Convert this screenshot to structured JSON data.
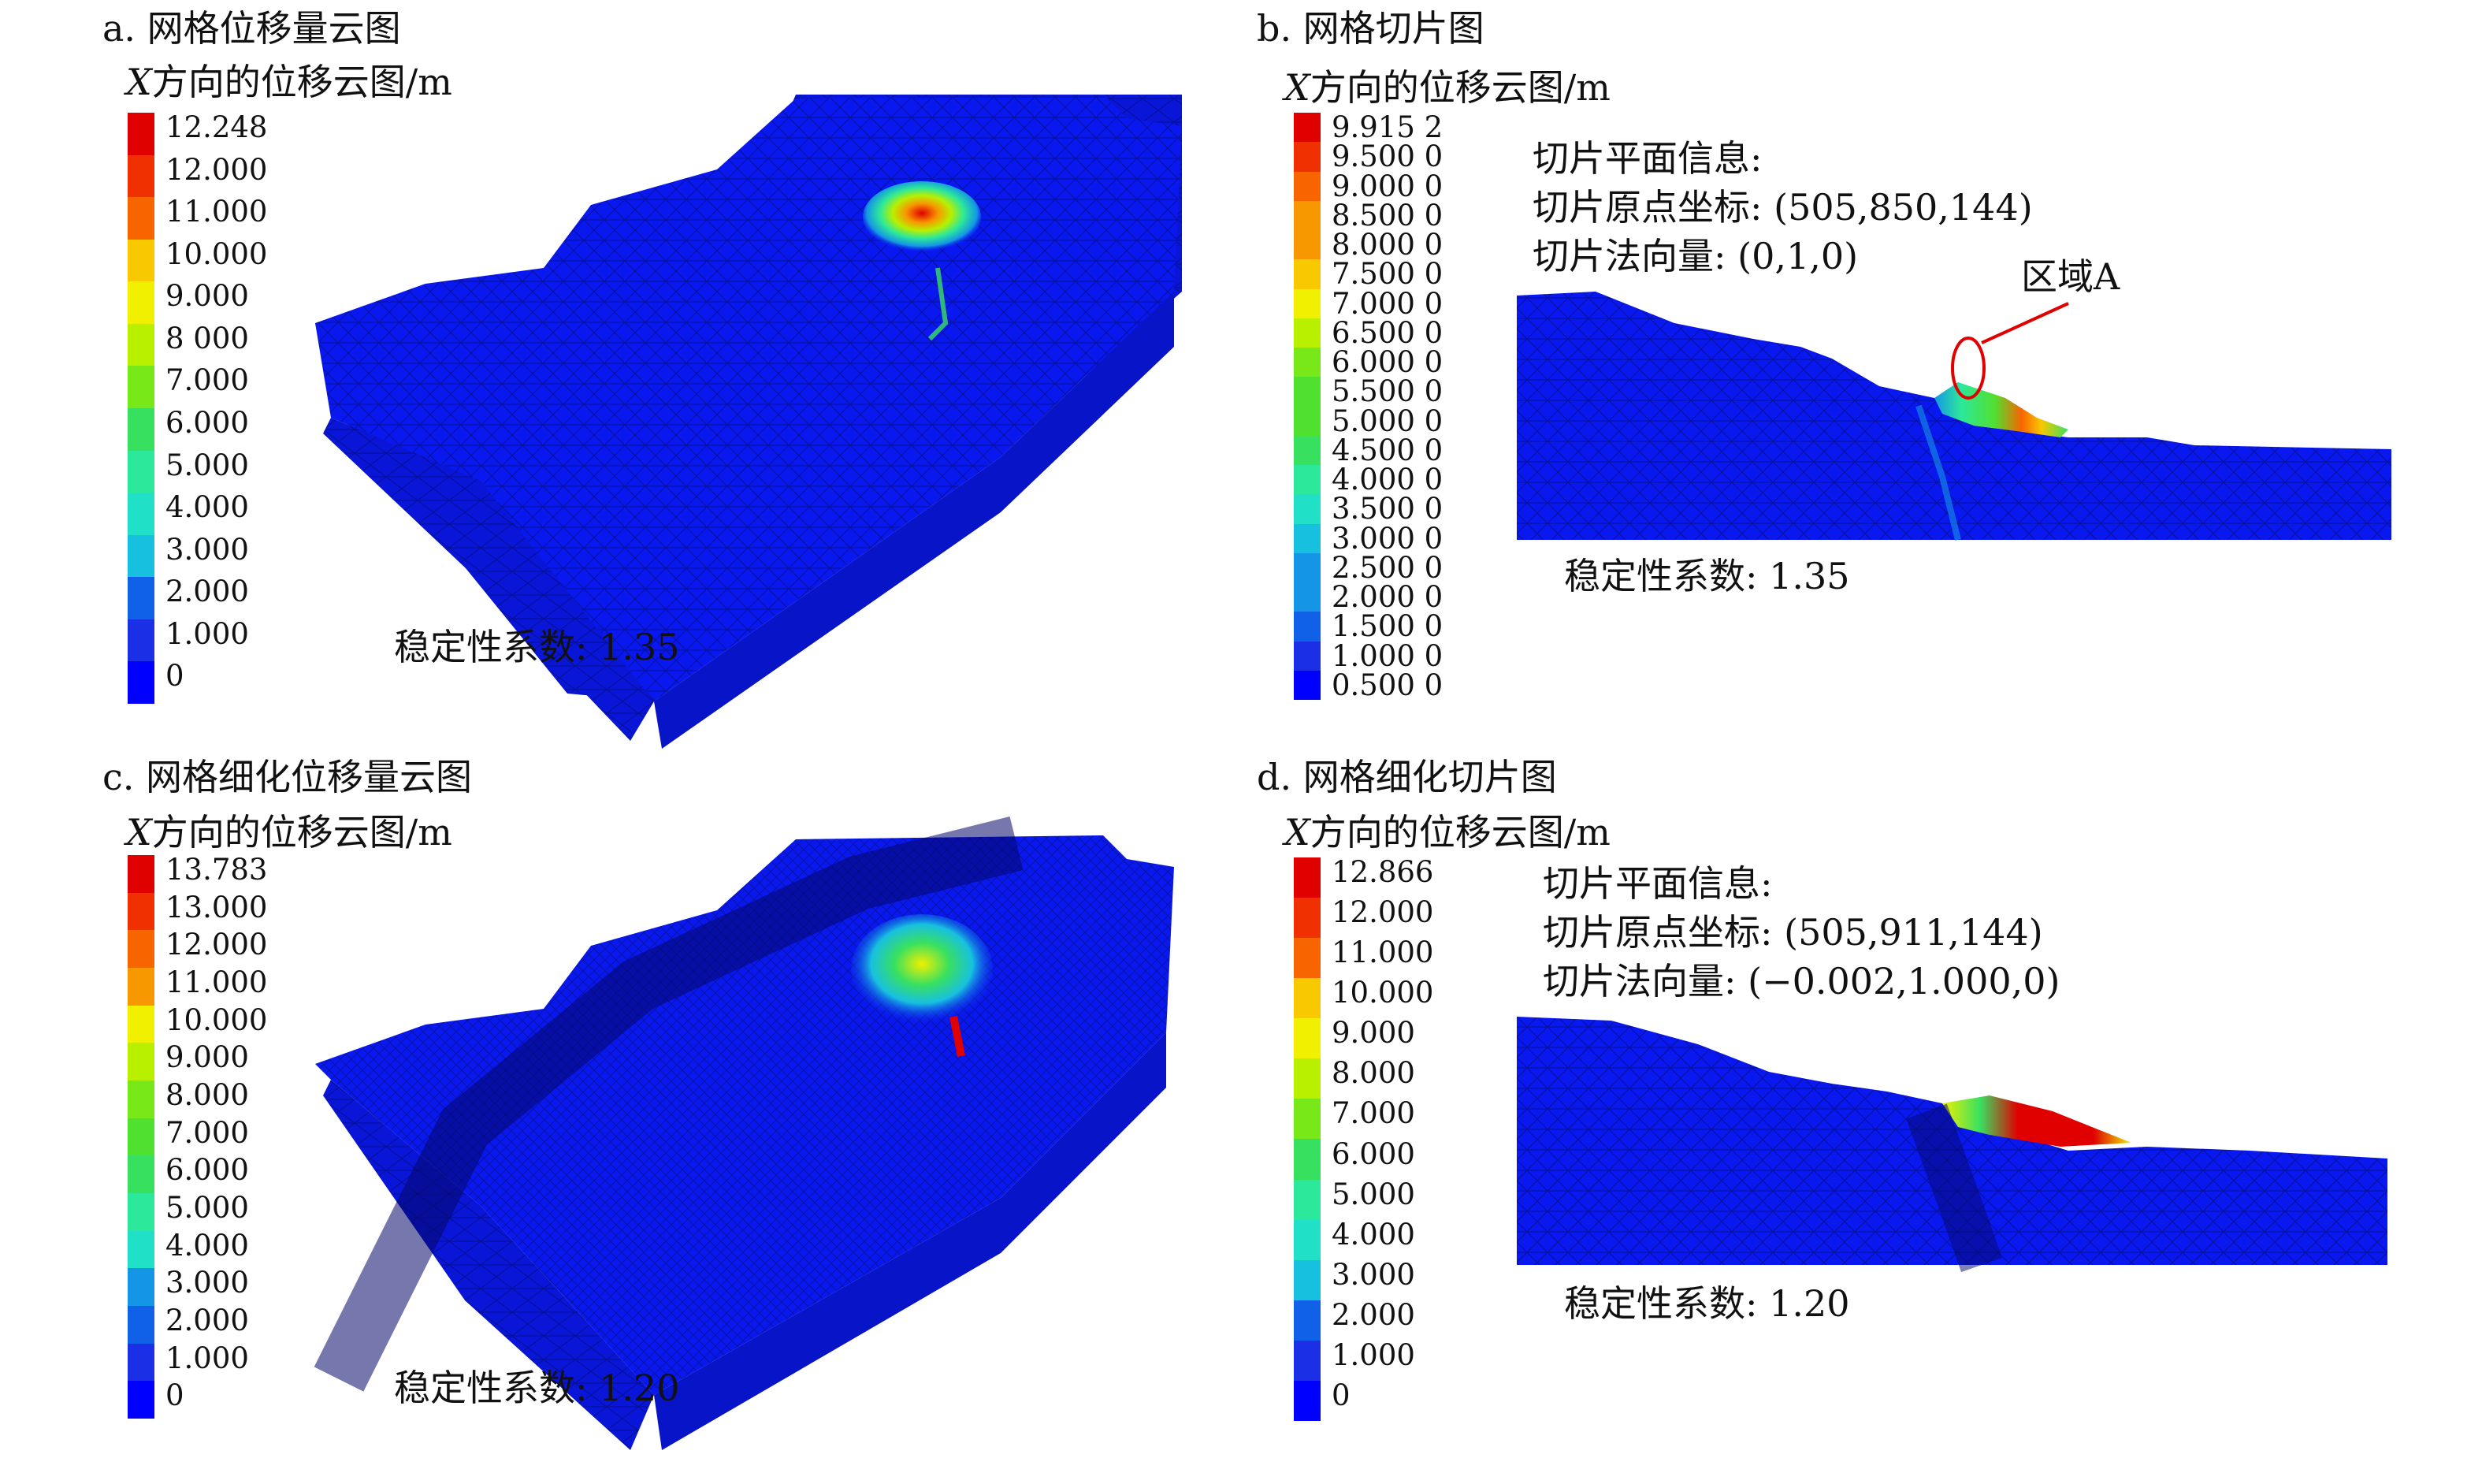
{
  "colorscale": [
    "#0000ff",
    "#1a2fe6",
    "#1060e8",
    "#1495e6",
    "#18c0e0",
    "#20e0c8",
    "#2ce89a",
    "#38e060",
    "#50e030",
    "#78e818",
    "#b8f000",
    "#f0f000",
    "#f8c800",
    "#f89800",
    "#f86400",
    "#f03000",
    "#e00000"
  ],
  "panels": {
    "a": {
      "title": "a. 网格位移量云图",
      "unit_var": "X",
      "unit_rest": "方向的位移云图/m",
      "ticks": [
        "12.248",
        "12.000",
        "11.000",
        "10.000",
        "9.000",
        "8 000",
        "7.000",
        "6.000",
        "5.000",
        "4.000",
        "3.000",
        "2.000",
        "1.000",
        "0"
      ],
      "stability": "稳定性系数: 1.35"
    },
    "b": {
      "title": "b. 网格切片图",
      "unit_var": "X",
      "unit_rest": "方向的位移云图/m",
      "ticks": [
        "9.915 2",
        "9.500 0",
        "9.000 0",
        "8.500 0",
        "8.000 0",
        "7.500 0",
        "7.000 0",
        "6.500 0",
        "6.000 0",
        "5.500 0",
        "5.000 0",
        "4.500 0",
        "4.000 0",
        "3.500 0",
        "3.000 0",
        "2.500 0",
        "2.000 0",
        "1.500 0",
        "1.000 0",
        "0.500 0"
      ],
      "info": [
        "切片平面信息:",
        "切片原点坐标: (505,850,144)",
        "切片法向量: (0,1,0)"
      ],
      "region_label": "区域A",
      "stability": "稳定性系数: 1.35"
    },
    "c": {
      "title": "c. 网格细化位移量云图",
      "unit_var": "X",
      "unit_rest": "方向的位移云图/m",
      "ticks": [
        "13.783",
        "13.000",
        "12.000",
        "11.000",
        "10.000",
        "9.000",
        "8.000",
        "7.000",
        "6.000",
        "5.000",
        "4.000",
        "3.000",
        "2.000",
        "1.000",
        "0"
      ],
      "stability": "稳定性系数: 1.20"
    },
    "d": {
      "title": "d. 网格细化切片图",
      "unit_var": "X",
      "unit_rest": "方向的位移云图/m",
      "ticks": [
        "12.866",
        "12.000",
        "11.000",
        "10.000",
        "9.000",
        "8.000",
        "7.000",
        "6.000",
        "5.000",
        "4.000",
        "3.000",
        "2.000",
        "1.000",
        "0"
      ],
      "info": [
        "切片平面信息:",
        "切片原点坐标: (505,911,144)",
        "切片法向量: (−0.002,1.000,0)"
      ],
      "stability": "稳定性系数: 1.20"
    }
  }
}
